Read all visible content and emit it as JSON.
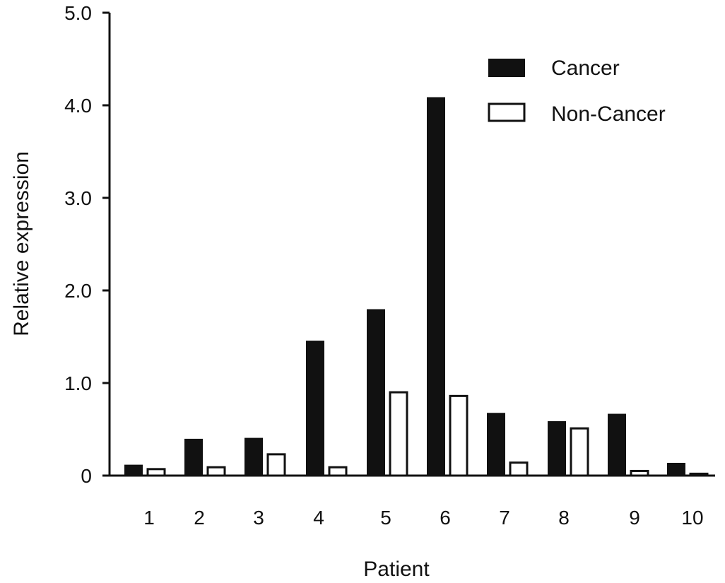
{
  "chart_data": {
    "type": "bar",
    "categories": [
      "1",
      "2",
      "3",
      "4",
      "5",
      "6",
      "7",
      "8",
      "9",
      "10"
    ],
    "series": [
      {
        "name": "Cancer",
        "values": [
          0.11,
          0.39,
          0.4,
          1.45,
          1.79,
          4.08,
          0.67,
          0.58,
          0.66,
          0.13
        ]
      },
      {
        "name": "Non-Cancer",
        "values": [
          0.07,
          0.09,
          0.23,
          0.09,
          0.9,
          0.86,
          0.14,
          0.51,
          0.05,
          0.02
        ]
      }
    ],
    "ylim": [
      0,
      5.0
    ],
    "yticks": [
      "0",
      "1.0",
      "2.0",
      "3.0",
      "4.0",
      "5.0"
    ],
    "ylabel": "Relative expression",
    "xlabel": "Patient",
    "legend_position": "top-right",
    "colors": {
      "Cancer": "#111111",
      "Non-Cancer": "#ffffff",
      "axis": "#111111"
    }
  }
}
